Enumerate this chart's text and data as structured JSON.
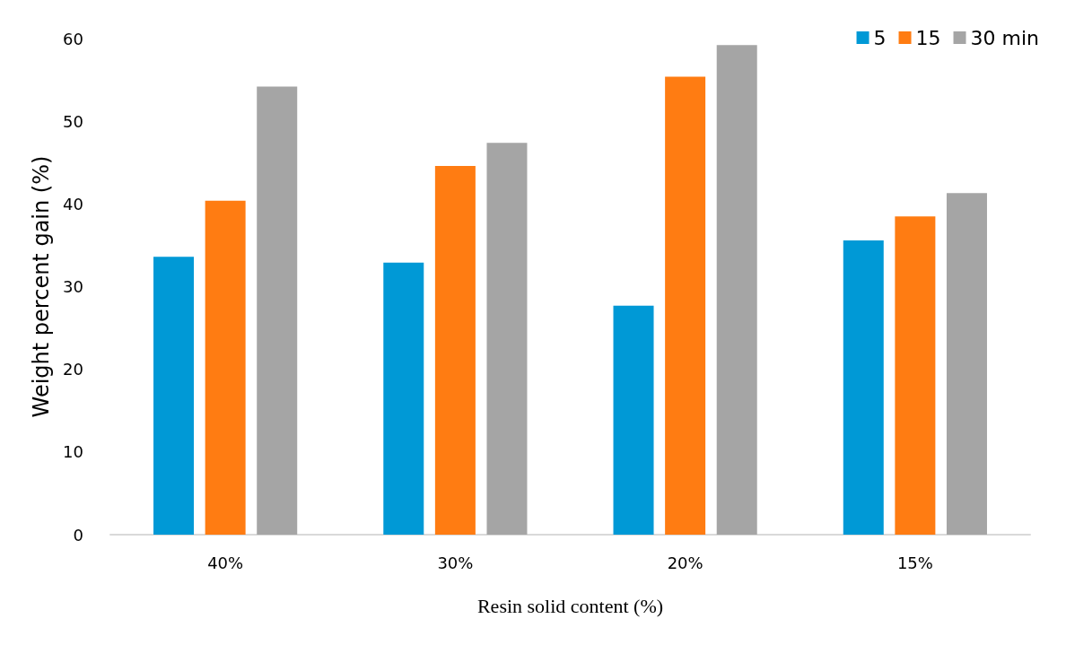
{
  "chart_data": {
    "type": "bar",
    "xlabel": "Resin solid content (%)",
    "ylabel": "Weight percent gain (%)",
    "categories": [
      "40%",
      "30%",
      "20%",
      "15%"
    ],
    "series": [
      {
        "name": "5",
        "color": "#0099d6",
        "values": [
          33.6,
          32.9,
          27.7,
          35.6
        ]
      },
      {
        "name": "15",
        "color": "#ff7c12",
        "values": [
          40.4,
          44.6,
          55.4,
          38.5
        ]
      },
      {
        "name": "30 min",
        "color": "#a5a5a5",
        "values": [
          54.2,
          47.4,
          59.2,
          41.3
        ]
      }
    ],
    "ylim": [
      0,
      60
    ],
    "yticks": [
      0,
      10,
      20,
      30,
      40,
      50,
      60
    ],
    "grid": false,
    "legend": "top right"
  }
}
